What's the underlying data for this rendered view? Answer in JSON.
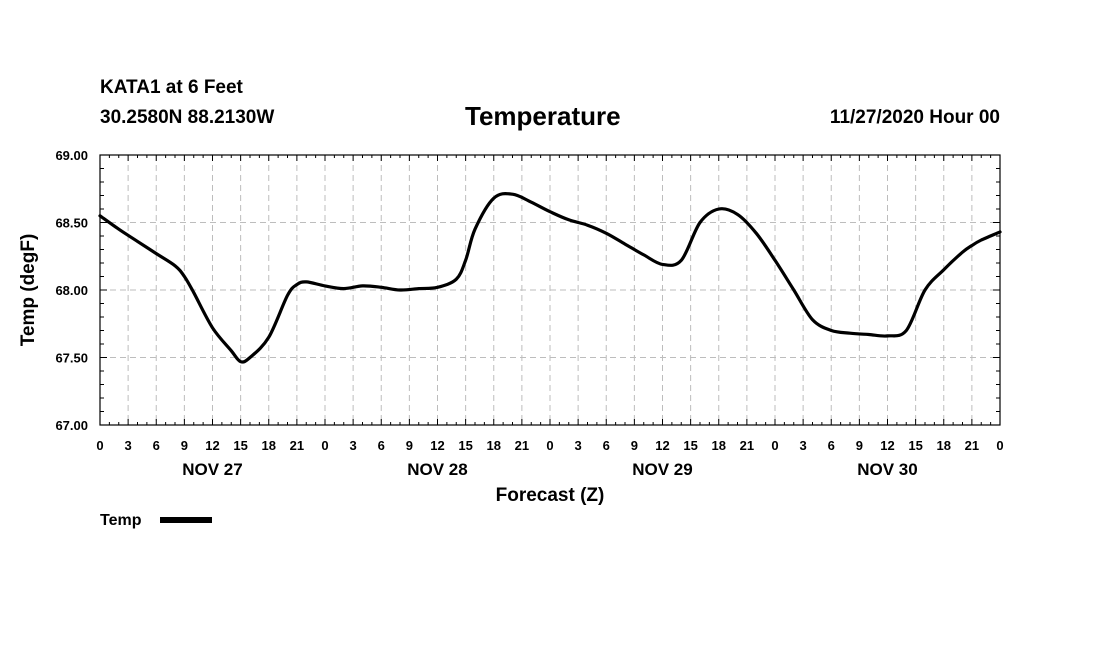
{
  "header": {
    "station": "KATA1 at 6 Feet",
    "coords": "30.2580N 88.2130W",
    "title": "Temperature",
    "run_time": "11/27/2020 Hour 00"
  },
  "chart_data": {
    "type": "line",
    "title": "Temperature",
    "xlabel": "Forecast (Z)",
    "ylabel": "Temp (degF)",
    "ylim": [
      67.0,
      69.0
    ],
    "y_ticks": [
      "67.00",
      "67.50",
      "68.00",
      "68.50",
      "69.00"
    ],
    "xlim": [
      0,
      96
    ],
    "x_tick_step": 3,
    "x_tick_labels": [
      "0",
      "3",
      "6",
      "9",
      "12",
      "15",
      "18",
      "21",
      "0",
      "3",
      "6",
      "9",
      "12",
      "15",
      "18",
      "21",
      "0",
      "3",
      "6",
      "9",
      "12",
      "15",
      "18",
      "21",
      "0",
      "3",
      "6",
      "9",
      "12",
      "15",
      "18",
      "21",
      "0"
    ],
    "day_labels": [
      {
        "label": "NOV 27",
        "hour": 12
      },
      {
        "label": "NOV 28",
        "hour": 36
      },
      {
        "label": "NOV 29",
        "hour": 60
      },
      {
        "label": "NOV 30",
        "hour": 84
      }
    ],
    "grid": true,
    "legend": {
      "label": "Temp",
      "position": "bottom-left"
    },
    "series": [
      {
        "name": "Temp",
        "color": "#000000",
        "x": [
          0,
          2,
          4,
          6,
          8,
          9,
          10,
          12,
          14,
          15,
          16,
          18,
          20,
          21,
          22,
          24,
          26,
          28,
          30,
          32,
          34,
          36,
          38,
          39,
          40,
          42,
          44,
          46,
          48,
          50,
          52,
          54,
          56,
          58,
          60,
          62,
          64,
          66,
          68,
          70,
          72,
          74,
          76,
          78,
          80,
          82,
          84,
          86,
          88,
          90,
          92,
          93,
          94,
          96
        ],
        "y": [
          68.55,
          68.45,
          68.36,
          68.27,
          68.18,
          68.1,
          67.98,
          67.72,
          67.55,
          67.47,
          67.5,
          67.65,
          67.96,
          68.04,
          68.06,
          68.03,
          68.01,
          68.03,
          68.02,
          68.0,
          68.01,
          68.02,
          68.08,
          68.22,
          68.45,
          68.68,
          68.71,
          68.65,
          68.58,
          68.52,
          68.48,
          68.42,
          68.34,
          68.26,
          68.19,
          68.22,
          68.5,
          68.6,
          68.56,
          68.42,
          68.22,
          68.0,
          67.78,
          67.7,
          67.68,
          67.67,
          67.66,
          67.7,
          68.0,
          68.15,
          68.28,
          68.33,
          68.37,
          68.43
        ]
      }
    ]
  }
}
